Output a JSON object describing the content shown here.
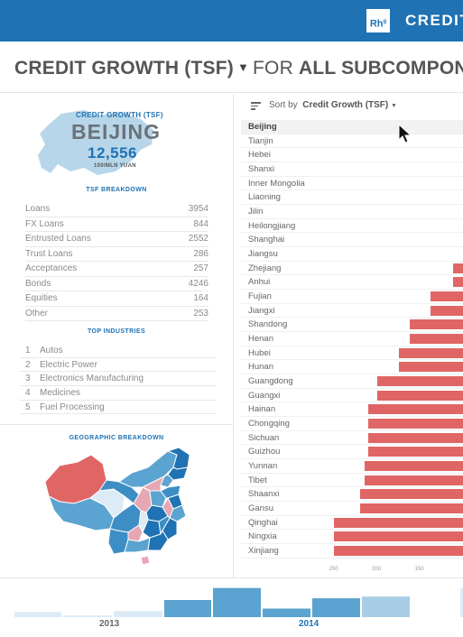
{
  "header": {
    "logo_text": "Rh",
    "logo_sup": "g",
    "title": "CREDIT"
  },
  "headline": {
    "metric": "CREDIT GROWTH (TSF)",
    "connector": "FOR",
    "scope": "ALL SUBCOMPON"
  },
  "region": {
    "label": "CREDIT GROWTH (TSF)",
    "name": "BEIJING",
    "value": "12,556",
    "unit": "100/MLN YUAN"
  },
  "tsf_breakdown": {
    "title": "TSF BREAKDOWN",
    "rows": [
      {
        "label": "Loans",
        "value": "3954"
      },
      {
        "label": "FX Loans",
        "value": "844"
      },
      {
        "label": "Entrusted Loans",
        "value": "2552"
      },
      {
        "label": "Trust Loans",
        "value": "286"
      },
      {
        "label": "Acceptances",
        "value": "257"
      },
      {
        "label": "Bonds",
        "value": "4246"
      },
      {
        "label": "Equities",
        "value": "164"
      },
      {
        "label": "Other",
        "value": "253"
      }
    ]
  },
  "top_industries": {
    "title": "TOP INDUSTRIES",
    "rows": [
      {
        "rank": "1",
        "label": "Autos"
      },
      {
        "rank": "2",
        "label": "Electric Power"
      },
      {
        "rank": "3",
        "label": "Electronics Manufacturing"
      },
      {
        "rank": "4",
        "label": "Medicines"
      },
      {
        "rank": "5",
        "label": "Fuel Processing"
      }
    ]
  },
  "geo": {
    "title": "GEOGRAPHIC BREAKDOWN"
  },
  "sort": {
    "label": "Sort by",
    "value": "Credit Growth (TSF)"
  },
  "provinces": [
    {
      "name": "Beijing",
      "value": null,
      "selected": true
    },
    {
      "name": "Tianjin",
      "value": null
    },
    {
      "name": "Hebei",
      "value": null
    },
    {
      "name": "Shanxi",
      "value": null
    },
    {
      "name": "Inner Mongolia",
      "value": null
    },
    {
      "name": "Liaoning",
      "value": null
    },
    {
      "name": "Jilin",
      "value": null
    },
    {
      "name": "Heilongjiang",
      "value": null
    },
    {
      "name": "Shanghai",
      "value": null
    },
    {
      "name": "Jiangsu",
      "value": null
    },
    {
      "name": "Zhejiang",
      "value": 112
    },
    {
      "name": "Anhui",
      "value": 112
    },
    {
      "name": "Fujian",
      "value": 138
    },
    {
      "name": "Jiangxi",
      "value": 138
    },
    {
      "name": "Shandong",
      "value": 162
    },
    {
      "name": "Henan",
      "value": 162
    },
    {
      "name": "Hubei",
      "value": 175
    },
    {
      "name": "Hunan",
      "value": 175
    },
    {
      "name": "Guangdong",
      "value": 200
    },
    {
      "name": "Guangxi",
      "value": 200
    },
    {
      "name": "Hainan",
      "value": 211
    },
    {
      "name": "Chongqing",
      "value": 211
    },
    {
      "name": "Sichuan",
      "value": 211
    },
    {
      "name": "Guizhou",
      "value": 211
    },
    {
      "name": "Yunnan",
      "value": 215
    },
    {
      "name": "Tibet",
      "value": 215
    },
    {
      "name": "Shaanxi",
      "value": 220
    },
    {
      "name": "Gansu",
      "value": 220
    },
    {
      "name": "Qinghai",
      "value": 251
    },
    {
      "name": "Ningxia",
      "value": 251
    },
    {
      "name": "Xinjiang",
      "value": 251
    }
  ],
  "axis": {
    "ticks": [
      "250",
      "200",
      "150"
    ],
    "tick_values": [
      250,
      200,
      150
    ],
    "range_right": 100,
    "range_left": 258
  },
  "timeline": {
    "years": [
      "2013",
      "2014"
    ],
    "bars": [
      {
        "value": 0.15,
        "year": "2013",
        "shade": "light"
      },
      {
        "value": 0.05,
        "year": "2013",
        "shade": "light"
      },
      {
        "value": 0.18,
        "year": "2013",
        "shade": "light"
      },
      {
        "value": 0.5,
        "year": "2014",
        "shade": "dark"
      },
      {
        "value": 0.85,
        "year": "2014",
        "shade": "dark"
      },
      {
        "value": 0.25,
        "year": "2014",
        "shade": "dark"
      },
      {
        "value": 0.55,
        "year": "2014",
        "shade": "dark"
      },
      {
        "value": 0.6,
        "year": "2014",
        "shade": "light"
      }
    ]
  },
  "colors": {
    "brand": "#1f72b3",
    "bar": "#e06666",
    "map_selected": "#b8d6ea"
  }
}
